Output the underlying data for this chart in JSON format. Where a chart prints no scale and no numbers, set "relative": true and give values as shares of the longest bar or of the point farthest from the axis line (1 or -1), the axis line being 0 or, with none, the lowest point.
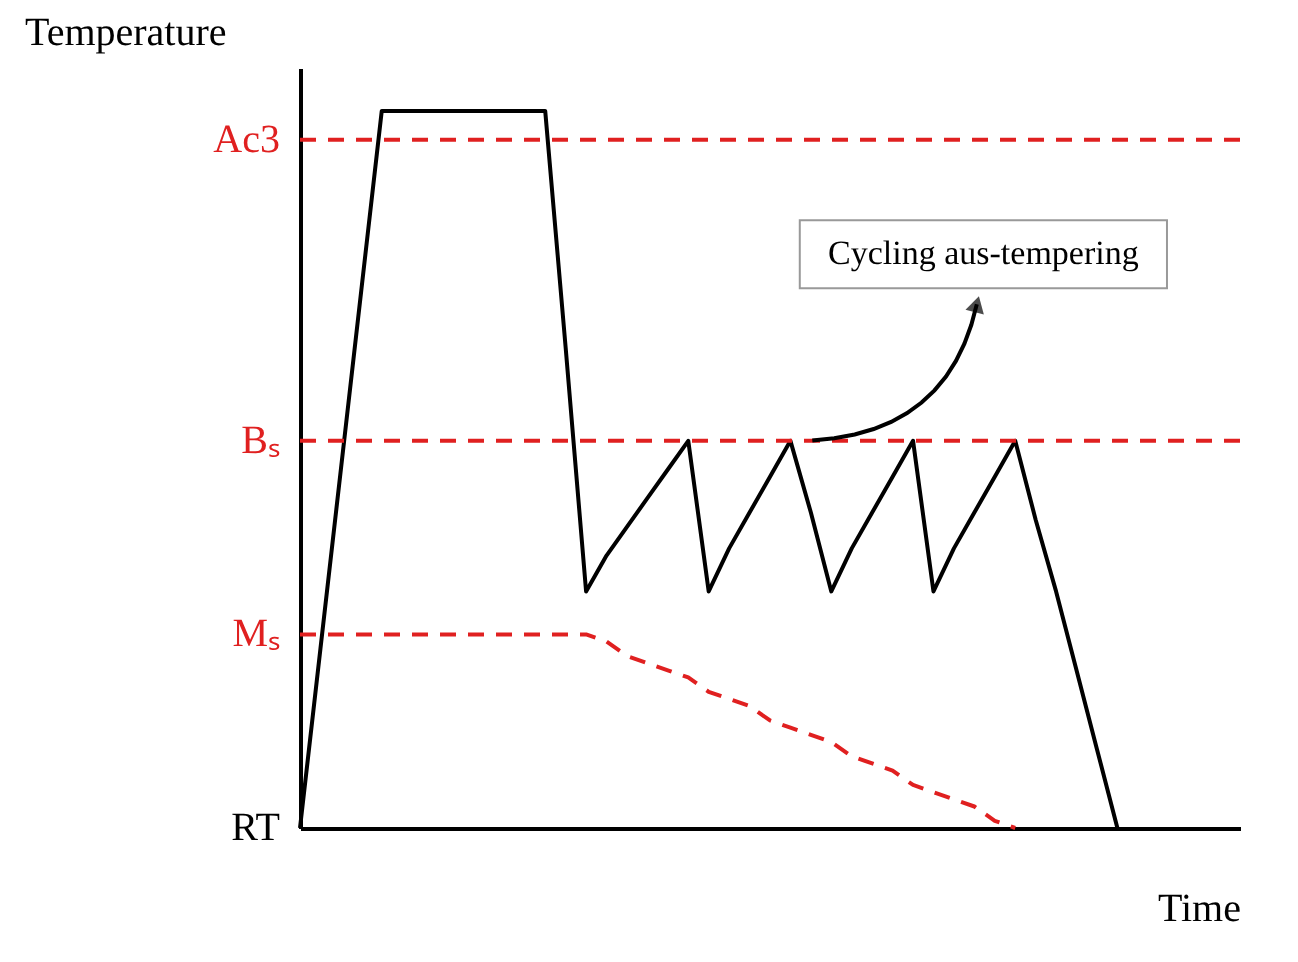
{
  "chart_data": {
    "type": "line",
    "relative": true,
    "xlabel": "Time",
    "ylabel": "Temperature",
    "categories": [
      null,
      null,
      null,
      null,
      null,
      null,
      null,
      null,
      null,
      null,
      null,
      null,
      null,
      null,
      null,
      null,
      null,
      null,
      null,
      null,
      null,
      null,
      null,
      null,
      null,
      null,
      null,
      null,
      null,
      null,
      null,
      null,
      null,
      null,
      null,
      null,
      null,
      null,
      null,
      null,
      null,
      null,
      null,
      null,
      null,
      null,
      null
    ],
    "series": [
      {
        "color": "#000000",
        "line_style": "solid",
        "values": [
          0,
          0.25,
          0.5,
          0.75,
          1,
          1,
          1,
          1,
          1,
          1,
          1,
          1,
          1,
          0.67,
          0.33,
          0.38,
          0.42,
          0.46,
          0.5,
          0.54,
          0.33,
          0.39,
          0.44,
          0.49,
          0.54,
          0.44,
          0.33,
          0.39,
          0.44,
          0.49,
          0.54,
          0.33,
          0.39,
          0.44,
          0.49,
          0.54,
          0.43,
          0.33,
          0.22,
          0.11,
          0,
          null,
          null,
          null,
          null,
          null,
          null
        ]
      },
      {
        "name": "Mₛ",
        "color": "#e02020",
        "line_style": "dashed",
        "values": [
          0.27,
          0.27,
          0.27,
          0.27,
          0.27,
          0.27,
          0.27,
          0.27,
          0.27,
          0.27,
          0.27,
          0.27,
          0.27,
          0.27,
          0.27,
          0.26,
          0.24,
          0.23,
          0.22,
          0.21,
          0.19,
          0.18,
          0.17,
          0.15,
          0.14,
          0.13,
          0.12,
          0.1,
          0.09,
          0.08,
          0.06,
          0.05,
          0.04,
          0.03,
          0.01,
          0,
          null,
          null,
          null,
          null,
          null,
          null,
          null,
          null,
          null,
          null,
          null
        ]
      }
    ],
    "ref_lines": [
      {
        "axis": "y",
        "value": 0.96,
        "label": "Ac3",
        "color": "#e02020",
        "line_style": "dashed"
      },
      {
        "axis": "y",
        "value": 0.54,
        "label": "Bₛ",
        "color": "#e02020",
        "line_style": "dashed"
      }
    ],
    "annotations": [
      "RT",
      "Cycling aus-tempering"
    ]
  }
}
